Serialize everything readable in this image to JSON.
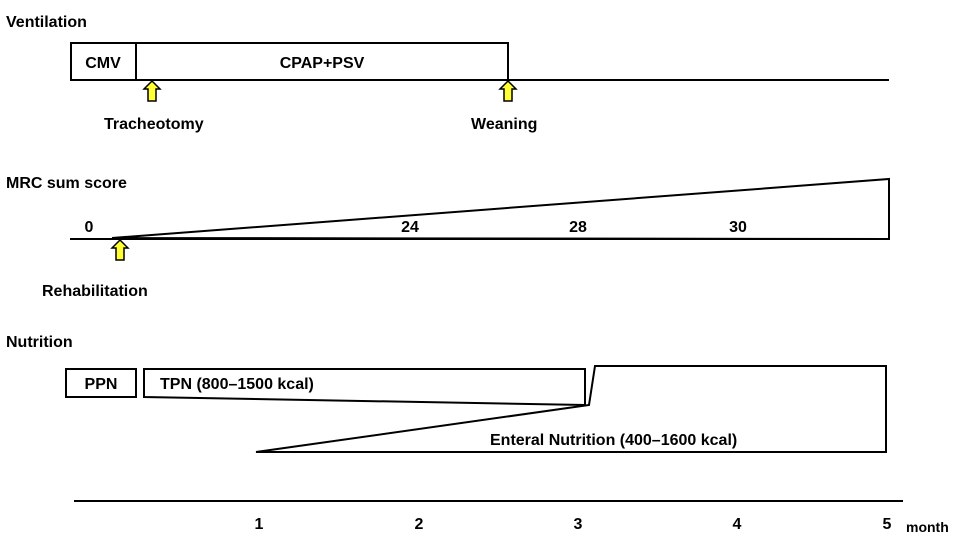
{
  "sections": {
    "ventilation": {
      "title": "Ventilation",
      "phases": [
        "CMV",
        "CPAP+PSV"
      ],
      "events": [
        "Tracheotomy",
        "Weaning"
      ]
    },
    "mrc": {
      "title": "MRC sum score",
      "scores": [
        "0",
        "24",
        "28",
        "30"
      ],
      "events": [
        "Rehabilitation"
      ]
    },
    "nutrition": {
      "title": "Nutrition",
      "phases": [
        "PPN",
        "TPN (800–1500 kcal)",
        "Enteral Nutrition (400–1600 kcal)"
      ]
    }
  },
  "axis": {
    "ticks": [
      "1",
      "2",
      "3",
      "4",
      "5"
    ],
    "unit": "month"
  },
  "colors": {
    "arrow": "#ffff33",
    "line": "#000000",
    "background": "#ffffff"
  },
  "icons": {
    "event_marker": "up-arrow-icon"
  }
}
